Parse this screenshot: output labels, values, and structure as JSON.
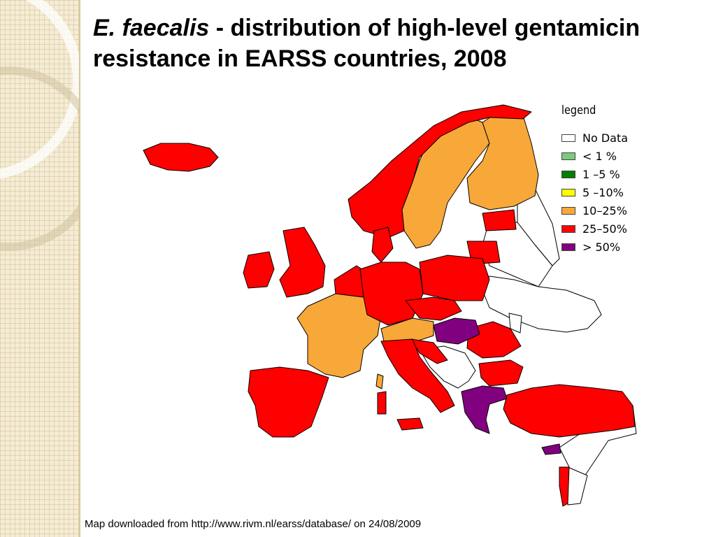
{
  "slide": {
    "title_italic": "E. faecalis",
    "title_rest": " - distribution of high-level gentamicin resistance in EARSS countries, 2008",
    "caption": "Map downloaded from http://www.rivm.nl/earss/database/ on 24/08/2009"
  },
  "legend": {
    "title": "legend",
    "items": [
      {
        "label": "No Data",
        "color": "#ffffff"
      },
      {
        "label": "< 1 %",
        "color": "#7fc97f"
      },
      {
        "label": "1 –5 %",
        "color": "#008000"
      },
      {
        "label": "5 –10%",
        "color": "#ffff00"
      },
      {
        "label": "10–25%",
        "color": "#f8a838"
      },
      {
        "label": "25–50%",
        "color": "#ff0000"
      },
      {
        "label": "> 50%",
        "color": "#800080"
      }
    ]
  },
  "colors": {
    "no_data": "#ffffff",
    "range_10_25": "#f8a838",
    "range_25_50": "#ff0000",
    "over_50": "#800080",
    "border": "#000000",
    "side_band": "#f4ecd6"
  }
}
